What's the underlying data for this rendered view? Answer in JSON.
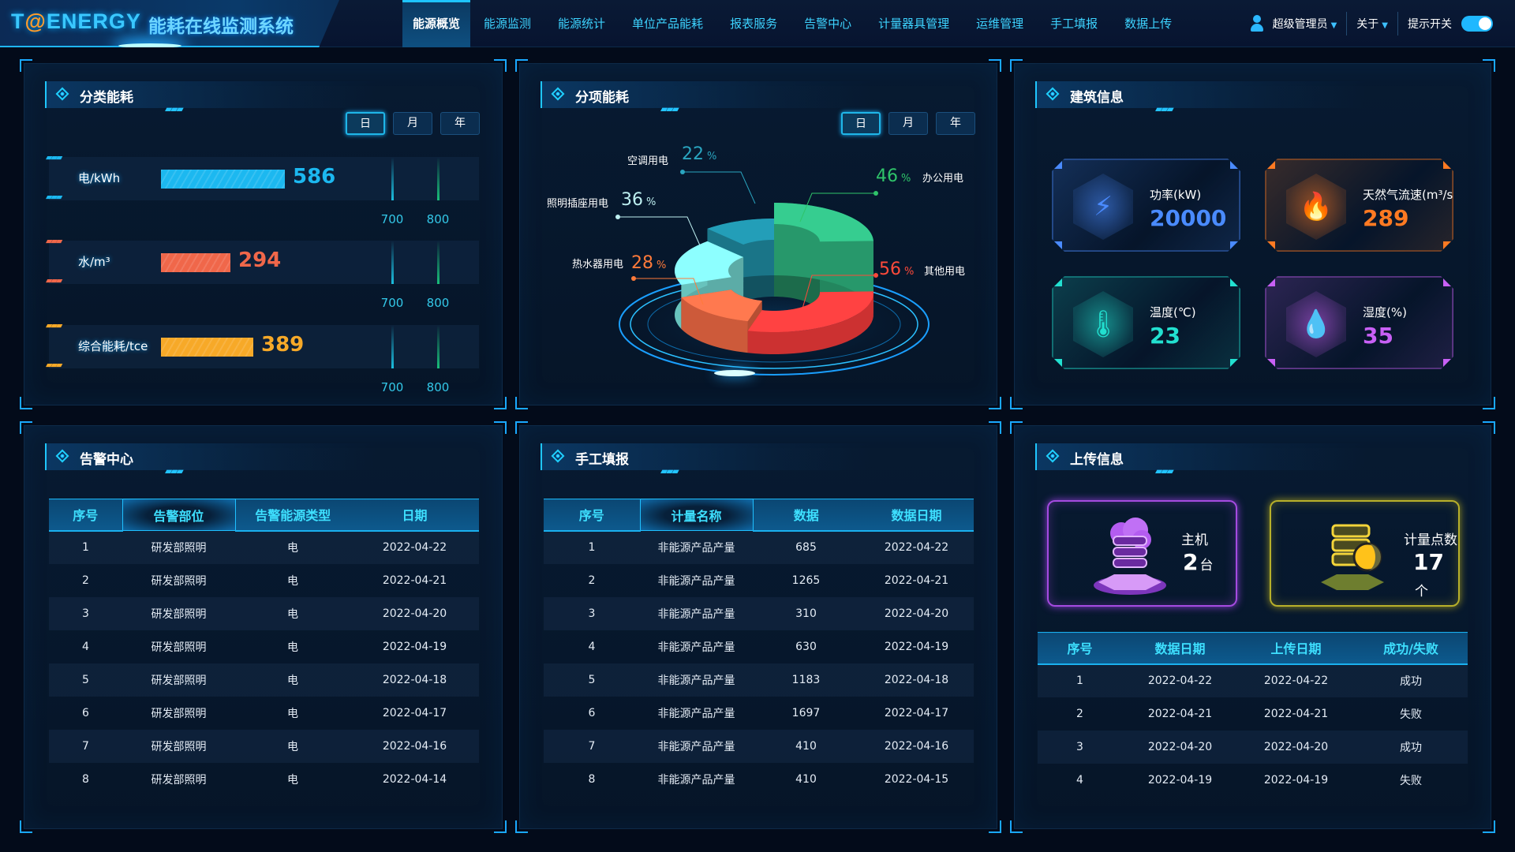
{
  "header": {
    "brand": "T@ENERGY",
    "system_name": "能耗在线监测系统",
    "nav": [
      "能源概览",
      "能源监测",
      "能源统计",
      "单位产品能耗",
      "报表服务",
      "告警中心",
      "计量器具管理",
      "运维管理",
      "手工填报",
      "数据上传"
    ],
    "active_nav": "能源概览",
    "user": "超级管理员",
    "about": "关于",
    "tip_switch": "提示开关",
    "tip_switch_on": true
  },
  "category": {
    "title": "分类能耗",
    "periods": [
      "日",
      "月",
      "年"
    ],
    "active_period": "日",
    "rows": [
      {
        "label": "电/kWh",
        "value": "586",
        "color": "#1cb8f0",
        "ticks": [
          "700",
          "800"
        ]
      },
      {
        "label": "水/m³",
        "value": "294",
        "color": "#f0674a",
        "ticks": [
          "700",
          "800"
        ]
      },
      {
        "label": "综合能耗/tce",
        "value": "389",
        "color": "#f7a928",
        "ticks": [
          "700",
          "800"
        ]
      }
    ]
  },
  "breakdown": {
    "title": "分项能耗",
    "periods": [
      "日",
      "月",
      "年"
    ],
    "active_period": "日"
  },
  "chart_data": {
    "type": "pie",
    "title": "",
    "categories": [
      "办公用电",
      "其他用电",
      "热水器用电",
      "照明插座用电",
      "空调用电"
    ],
    "values": [
      46,
      56,
      28,
      36,
      22
    ],
    "unit": "%",
    "colors": [
      "#2fb37e",
      "#f03a3a",
      "#f26a45",
      "#7be6df",
      "#1f8aa0"
    ],
    "label_colors": [
      "#2fc46a",
      "#ff4a3a",
      "#ff7a3a",
      "#bdeff0",
      "#2aa5c0"
    ]
  },
  "building": {
    "title": "建筑信息",
    "cards": [
      {
        "label": "功率(kW)",
        "value": "20000",
        "color": "#4a8bff",
        "icon": "power-meter-icon"
      },
      {
        "label": "天然气流速(m³/s)",
        "value": "289",
        "color": "#ff7a22",
        "icon": "flame-icon"
      },
      {
        "label": "温度(℃)",
        "value": "23",
        "color": "#22e0d0",
        "icon": "thermometer-sun-icon"
      },
      {
        "label": "湿度(%)",
        "value": "35",
        "color": "#c860f5",
        "icon": "water-drop-icon"
      }
    ]
  },
  "alarm": {
    "title": "告警中心",
    "columns": [
      "序号",
      "告警部位",
      "告警能源类型",
      "日期"
    ],
    "rows": [
      [
        "1",
        "研发部照明",
        "电",
        "2022-04-22"
      ],
      [
        "2",
        "研发部照明",
        "电",
        "2022-04-21"
      ],
      [
        "3",
        "研发部照明",
        "电",
        "2022-04-20"
      ],
      [
        "4",
        "研发部照明",
        "电",
        "2022-04-19"
      ],
      [
        "5",
        "研发部照明",
        "电",
        "2022-04-18"
      ],
      [
        "6",
        "研发部照明",
        "电",
        "2022-04-17"
      ],
      [
        "7",
        "研发部照明",
        "电",
        "2022-04-16"
      ],
      [
        "8",
        "研发部照明",
        "电",
        "2022-04-14"
      ]
    ]
  },
  "manual": {
    "title": "手工填报",
    "columns": [
      "序号",
      "计量名称",
      "数据",
      "数据日期"
    ],
    "rows": [
      [
        "1",
        "非能源产品产量",
        "685",
        "2022-04-22"
      ],
      [
        "2",
        "非能源产品产量",
        "1265",
        "2022-04-21"
      ],
      [
        "3",
        "非能源产品产量",
        "310",
        "2022-04-20"
      ],
      [
        "4",
        "非能源产品产量",
        "630",
        "2022-04-19"
      ],
      [
        "5",
        "非能源产品产量",
        "1183",
        "2022-04-18"
      ],
      [
        "6",
        "非能源产品产量",
        "1697",
        "2022-04-17"
      ],
      [
        "7",
        "非能源产品产量",
        "410",
        "2022-04-16"
      ],
      [
        "8",
        "非能源产品产量",
        "410",
        "2022-04-15"
      ]
    ]
  },
  "upload": {
    "title": "上传信息",
    "host": {
      "label": "主机",
      "value": "2",
      "unit": "台",
      "color": "#b45cf0"
    },
    "points": {
      "label": "计量点数",
      "value": "17",
      "unit": "个",
      "color": "#d8c830"
    },
    "columns": [
      "序号",
      "数据日期",
      "上传日期",
      "成功/失败"
    ],
    "rows": [
      [
        "1",
        "2022-04-22",
        "2022-04-22",
        "成功"
      ],
      [
        "2",
        "2022-04-21",
        "2022-04-21",
        "失败"
      ],
      [
        "3",
        "2022-04-20",
        "2022-04-20",
        "成功"
      ],
      [
        "4",
        "2022-04-19",
        "2022-04-19",
        "失败"
      ]
    ]
  }
}
